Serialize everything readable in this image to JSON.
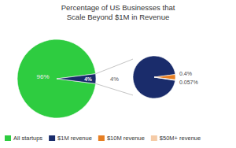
{
  "chart_data": [
    {
      "type": "pie",
      "title": "Percentage of US Businesses that\nScale Beyond $1M in Revenue",
      "categories": [
        "All startups",
        "$1M revenue"
      ],
      "values": [
        96,
        4
      ],
      "value_labels": [
        "96%",
        "4%"
      ],
      "colors": [
        "#2ecc40",
        "#1a2c6b"
      ],
      "data_labels": true,
      "legend": "lower left"
    },
    {
      "type": "pie",
      "categories": [
        "$1M revenue",
        "$10M revenue",
        "$50M+ revenue"
      ],
      "values": [
        95.543,
        4.057,
        0.4
      ],
      "colors": [
        "#1a2c6b",
        "#e67e22",
        "#f5cba7"
      ],
      "annotations": [
        "4%",
        "0.4%",
        "0.057%"
      ],
      "legend": "lower left"
    }
  ]
}
